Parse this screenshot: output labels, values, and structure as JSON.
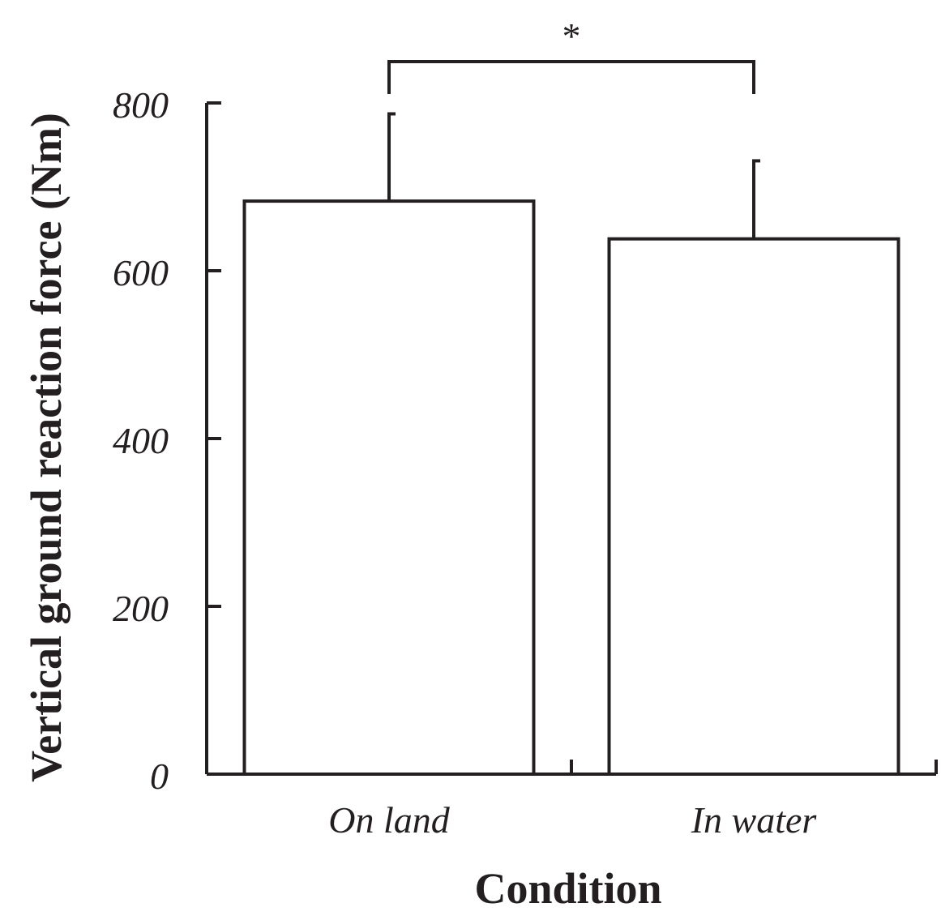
{
  "chart_data": {
    "type": "bar",
    "title": "",
    "xlabel": "Condition",
    "ylabel": "Vertical ground reaction force (Nm)",
    "categories": [
      "On land",
      "In water"
    ],
    "values": [
      683,
      638
    ],
    "error_upper": [
      787,
      731
    ],
    "ylim": [
      0,
      800
    ],
    "yticks": [
      "0",
      "200",
      "400",
      "600",
      "800"
    ],
    "grid": false,
    "significance": {
      "between": [
        "On land",
        "In water"
      ],
      "label": "*"
    },
    "colors": {
      "ink": "#231f20",
      "bar_fill": "#ffffff"
    }
  }
}
